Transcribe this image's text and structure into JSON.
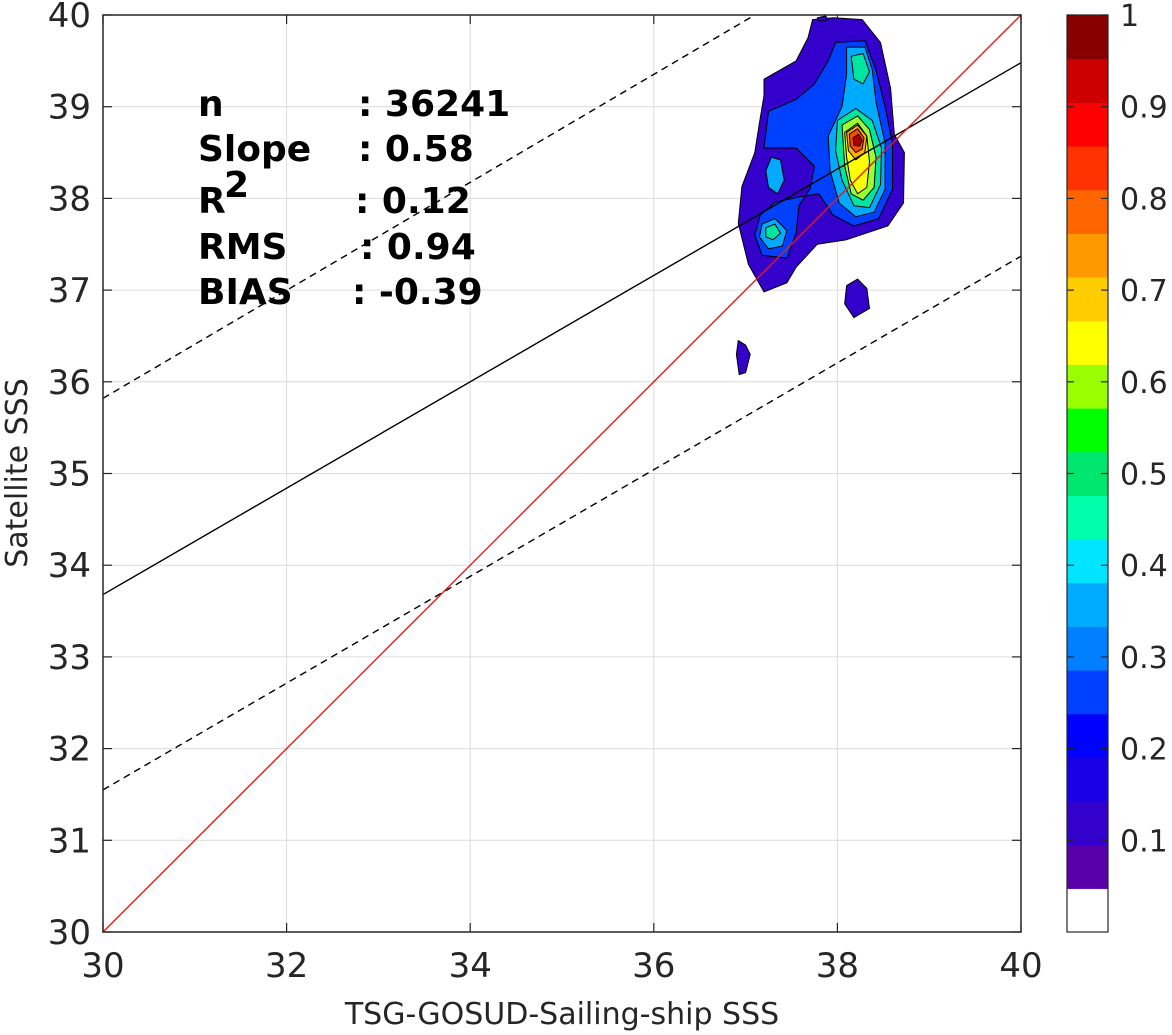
{
  "chart_data": {
    "type": "contour",
    "xlabel": "TSG-GOSUD-Sailing-ship SSS",
    "ylabel": "Satellite SSS",
    "xlim": [
      30,
      40
    ],
    "ylim": [
      30,
      40
    ],
    "x_ticks": [
      "30",
      "32",
      "34",
      "36",
      "38",
      "40"
    ],
    "y_ticks": [
      "30",
      "31",
      "32",
      "33",
      "34",
      "35",
      "36",
      "37",
      "38",
      "39",
      "40"
    ],
    "grid": true,
    "stats": [
      {
        "name": "n",
        "value": ": 36241"
      },
      {
        "name": "Slope",
        "value": ": 0.58"
      },
      {
        "name": "R",
        "sup": "2",
        "value": ": 0.12"
      },
      {
        "name": "RMS",
        "value": ": 0.94"
      },
      {
        "name": "BIAS",
        "value": ": -0.39"
      }
    ],
    "lines": {
      "identity": {
        "color": "#e41a1c",
        "x": [
          30,
          40
        ],
        "y": [
          30,
          40
        ]
      },
      "fit": {
        "color": "#000000",
        "x": [
          30,
          40
        ],
        "y": [
          33.68,
          39.48
        ]
      },
      "fit_plus": {
        "color": "#000000",
        "dash": true,
        "x": [
          30,
          37.1
        ],
        "y": [
          35.82,
          40
        ]
      },
      "fit_minus": {
        "color": "#000000",
        "dash": true,
        "x": [
          30,
          40
        ],
        "y": [
          31.55,
          37.37
        ]
      }
    },
    "density_contours": [
      {
        "level": 0.1,
        "color": "#3300cc",
        "points": [
          [
            37.73,
            39.95
          ],
          [
            37.96,
            39.97
          ],
          [
            38.27,
            39.95
          ],
          [
            38.47,
            39.7
          ],
          [
            38.58,
            39.2
          ],
          [
            38.62,
            38.7
          ],
          [
            38.73,
            38.5
          ],
          [
            38.72,
            37.95
          ],
          [
            38.55,
            37.7
          ],
          [
            38.1,
            37.55
          ],
          [
            37.78,
            37.5
          ],
          [
            37.55,
            37.25
          ],
          [
            37.45,
            37.08
          ],
          [
            37.2,
            36.98
          ],
          [
            37.03,
            37.28
          ],
          [
            36.92,
            37.73
          ],
          [
            36.96,
            38.13
          ],
          [
            37.1,
            38.5
          ],
          [
            37.15,
            38.82
          ],
          [
            37.2,
            39.12
          ],
          [
            37.2,
            39.3
          ],
          [
            37.55,
            39.5
          ],
          [
            37.68,
            39.75
          ]
        ]
      },
      {
        "level": 0.1,
        "color": "#3300cc",
        "points": [
          [
            38.1,
            37.05
          ],
          [
            38.22,
            37.12
          ],
          [
            38.32,
            37.02
          ],
          [
            38.35,
            36.8
          ],
          [
            38.18,
            36.7
          ],
          [
            38.08,
            36.85
          ]
        ]
      },
      {
        "level": 0.1,
        "color": "#3300cc",
        "points": [
          [
            36.92,
            36.45
          ],
          [
            37.0,
            36.4
          ],
          [
            37.05,
            36.3
          ],
          [
            37.0,
            36.1
          ],
          [
            36.93,
            36.08
          ],
          [
            36.9,
            36.3
          ]
        ]
      },
      {
        "level": 0.1,
        "color": "#3300cc",
        "points": [
          [
            37.78,
            39.97
          ],
          [
            37.87,
            39.99
          ],
          [
            37.9,
            39.95
          ],
          [
            37.8,
            39.93
          ]
        ]
      },
      {
        "level": 0.2,
        "color": "#0040ff",
        "points": [
          [
            37.98,
            39.7
          ],
          [
            38.3,
            39.72
          ],
          [
            38.42,
            39.4
          ],
          [
            38.52,
            39.0
          ],
          [
            38.6,
            38.6
          ],
          [
            38.6,
            38.1
          ],
          [
            38.45,
            37.78
          ],
          [
            38.18,
            37.7
          ],
          [
            37.95,
            37.82
          ],
          [
            37.8,
            38.05
          ],
          [
            37.6,
            38.02
          ],
          [
            37.32,
            37.96
          ],
          [
            37.16,
            37.82
          ],
          [
            37.1,
            37.6
          ],
          [
            37.18,
            37.38
          ],
          [
            37.45,
            37.35
          ],
          [
            37.55,
            37.62
          ],
          [
            37.58,
            37.92
          ],
          [
            37.7,
            38.1
          ],
          [
            37.75,
            38.35
          ],
          [
            37.55,
            38.55
          ],
          [
            37.2,
            38.55
          ],
          [
            37.25,
            38.95
          ],
          [
            37.55,
            39.08
          ],
          [
            37.75,
            39.25
          ],
          [
            37.9,
            39.5
          ]
        ]
      },
      {
        "level": 0.3,
        "color": "#00aaff",
        "points": [
          [
            38.1,
            39.65
          ],
          [
            38.3,
            39.65
          ],
          [
            38.38,
            39.4
          ],
          [
            38.42,
            39.05
          ],
          [
            38.52,
            38.6
          ],
          [
            38.52,
            38.1
          ],
          [
            38.4,
            37.85
          ],
          [
            38.2,
            37.8
          ],
          [
            38.02,
            37.95
          ],
          [
            37.92,
            38.3
          ],
          [
            37.9,
            38.68
          ],
          [
            38.05,
            39.0
          ],
          [
            38.1,
            39.35
          ]
        ]
      },
      {
        "level": 0.3,
        "color": "#00aaff",
        "points": [
          [
            37.28,
            38.45
          ],
          [
            37.38,
            38.42
          ],
          [
            37.42,
            38.2
          ],
          [
            37.35,
            38.05
          ],
          [
            37.25,
            38.12
          ],
          [
            37.22,
            38.3
          ]
        ]
      },
      {
        "level": 0.3,
        "color": "#00aaff",
        "points": [
          [
            37.18,
            37.72
          ],
          [
            37.32,
            37.78
          ],
          [
            37.45,
            37.65
          ],
          [
            37.4,
            37.48
          ],
          [
            37.25,
            37.45
          ],
          [
            37.15,
            37.58
          ]
        ]
      },
      {
        "level": 0.4,
        "color": "#00e6a0",
        "points": [
          [
            38.15,
            39.55
          ],
          [
            38.28,
            39.58
          ],
          [
            38.35,
            39.38
          ],
          [
            38.28,
            39.25
          ],
          [
            38.18,
            39.3
          ]
        ]
      },
      {
        "level": 0.4,
        "color": "#00e6a0",
        "points": [
          [
            38.0,
            38.85
          ],
          [
            38.2,
            38.98
          ],
          [
            38.38,
            38.85
          ],
          [
            38.48,
            38.55
          ],
          [
            38.47,
            38.15
          ],
          [
            38.35,
            37.9
          ],
          [
            38.18,
            37.92
          ],
          [
            38.05,
            38.2
          ],
          [
            37.98,
            38.52
          ]
        ]
      },
      {
        "level": 0.4,
        "color": "#00e6a0",
        "points": [
          [
            37.22,
            37.68
          ],
          [
            37.32,
            37.72
          ],
          [
            37.38,
            37.62
          ],
          [
            37.3,
            37.55
          ],
          [
            37.22,
            37.58
          ]
        ]
      },
      {
        "level": 0.55,
        "color": "#99ff33",
        "points": [
          [
            38.05,
            38.8
          ],
          [
            38.22,
            38.9
          ],
          [
            38.35,
            38.75
          ],
          [
            38.42,
            38.45
          ],
          [
            38.4,
            38.12
          ],
          [
            38.28,
            37.98
          ],
          [
            38.15,
            38.05
          ],
          [
            38.08,
            38.35
          ]
        ]
      },
      {
        "level": 0.65,
        "color": "#ffff00",
        "points": [
          [
            38.08,
            38.72
          ],
          [
            38.22,
            38.82
          ],
          [
            38.32,
            38.68
          ],
          [
            38.35,
            38.4
          ],
          [
            38.32,
            38.12
          ],
          [
            38.22,
            38.05
          ],
          [
            38.14,
            38.2
          ],
          [
            38.1,
            38.45
          ]
        ]
      },
      {
        "level": 0.75,
        "color": "#ffb000",
        "points": [
          [
            38.1,
            38.72
          ],
          [
            38.22,
            38.8
          ],
          [
            38.32,
            38.68
          ],
          [
            38.3,
            38.5
          ],
          [
            38.2,
            38.42
          ],
          [
            38.12,
            38.52
          ]
        ]
      },
      {
        "level": 0.85,
        "color": "#ff4a00",
        "points": [
          [
            38.13,
            38.7
          ],
          [
            38.22,
            38.76
          ],
          [
            38.29,
            38.66
          ],
          [
            38.27,
            38.54
          ],
          [
            38.2,
            38.5
          ],
          [
            38.14,
            38.57
          ]
        ]
      },
      {
        "level": 0.95,
        "color": "#aa0000",
        "points": [
          [
            38.17,
            38.66
          ],
          [
            38.23,
            38.7
          ],
          [
            38.27,
            38.63
          ],
          [
            38.24,
            38.57
          ],
          [
            38.18,
            38.58
          ]
        ]
      }
    ],
    "colorbar": {
      "ticks": [
        "0.1",
        "0.2",
        "0.3",
        "0.4",
        "0.5",
        "0.6",
        "0.7",
        "0.8",
        "0.9",
        "1"
      ],
      "colors": [
        "#ffffff",
        "#5a00aa",
        "#3300cc",
        "#1a00e6",
        "#0000ff",
        "#0040ff",
        "#0080ff",
        "#00aaff",
        "#00e5ff",
        "#00ffaa",
        "#00e56e",
        "#00ff00",
        "#99ff00",
        "#ffff00",
        "#ffcc00",
        "#ff9900",
        "#ff6600",
        "#ff3300",
        "#ff0000",
        "#cc0000",
        "#880000"
      ]
    }
  }
}
